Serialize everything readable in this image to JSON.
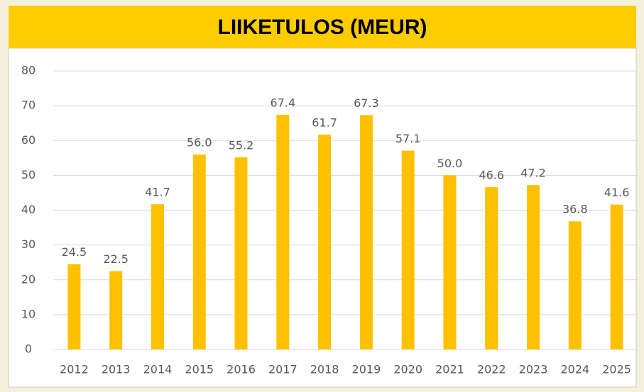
{
  "chart_data": {
    "type": "bar",
    "title": "LIIKETULOS (MEUR)",
    "categories": [
      "2012",
      "2013",
      "2014",
      "2015",
      "2016",
      "2017",
      "2018",
      "2019",
      "2020",
      "2021",
      "2022",
      "2023",
      "2024",
      "2025"
    ],
    "values": [
      24.5,
      22.5,
      41.7,
      56.0,
      55.2,
      67.4,
      61.7,
      67.3,
      57.1,
      50.0,
      46.6,
      47.2,
      36.8,
      41.6
    ],
    "value_labels": [
      "24.5",
      "22.5",
      "41.7",
      "56.0",
      "55.2",
      "67.4",
      "61.7",
      "67.3",
      "57.1",
      "50.0",
      "46.6",
      "47.2",
      "36.8",
      "41.6"
    ],
    "color": "#ffc000",
    "ylim": [
      0,
      80
    ],
    "yticks": [
      0,
      10,
      20,
      30,
      40,
      50,
      60,
      70,
      80
    ],
    "grid": true
  }
}
